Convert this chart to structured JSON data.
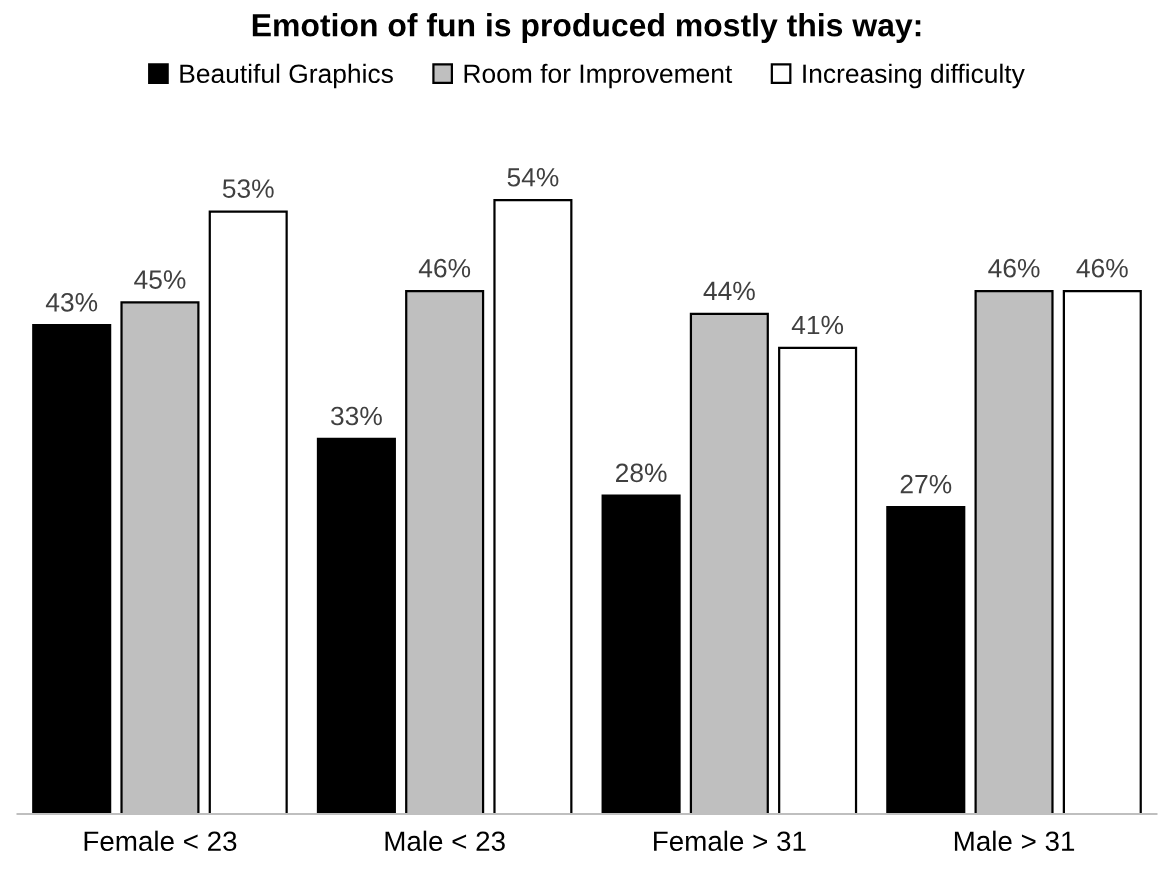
{
  "chart_data": {
    "type": "bar",
    "title": "Emotion of fun is produced mostly this way:",
    "categories": [
      "Female < 23",
      "Male < 23",
      "Female > 31",
      "Male > 31"
    ],
    "series": [
      {
        "name": "Beautiful Graphics",
        "color": "#000000",
        "values": [
          43,
          33,
          28,
          27
        ],
        "value_labels": [
          "43%",
          "33%",
          "28%",
          "27%"
        ]
      },
      {
        "name": "Room for Improvement",
        "color": "#bfbfbf",
        "values": [
          45,
          46,
          44,
          46
        ],
        "value_labels": [
          "45%",
          "46%",
          "44%",
          "46%"
        ]
      },
      {
        "name": "Increasing difficulty",
        "color": "#ffffff",
        "values": [
          53,
          54,
          41,
          46
        ],
        "value_labels": [
          "53%",
          "54%",
          "41%",
          "46%"
        ]
      }
    ],
    "legend": "top"
  }
}
